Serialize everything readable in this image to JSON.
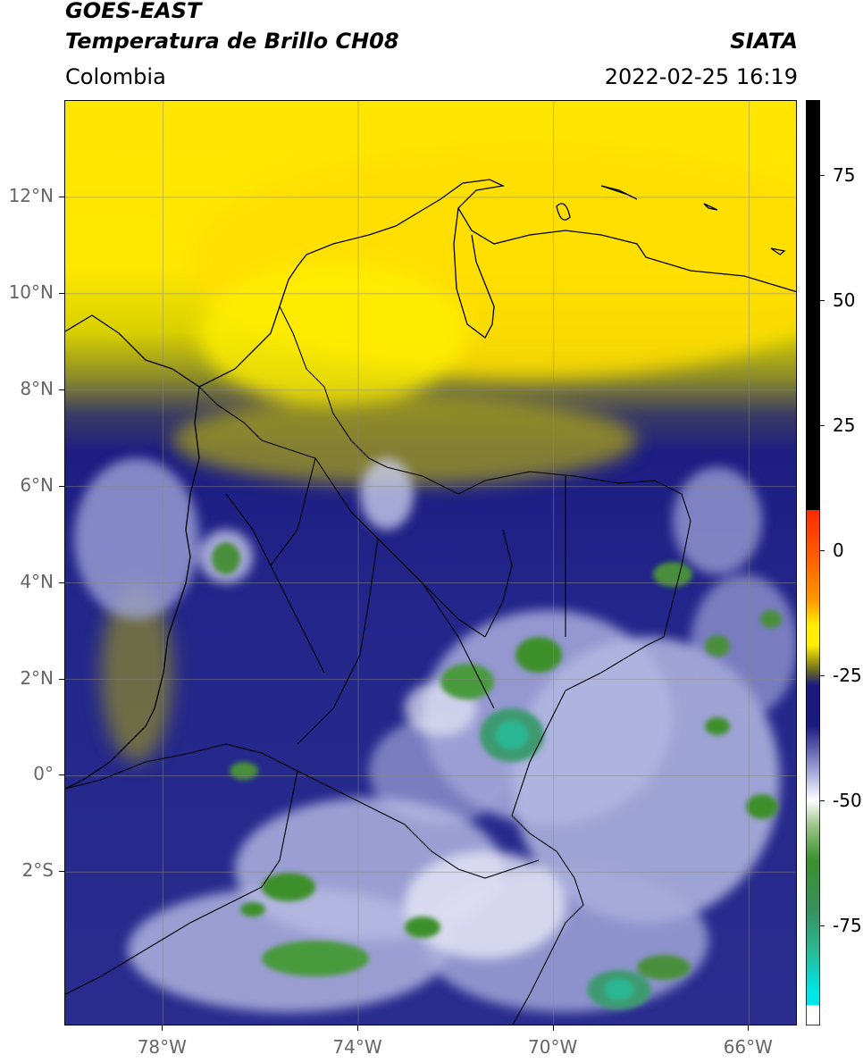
{
  "header": {
    "line1": "GOES-EAST",
    "line2": "Temperatura de Brillo CH08",
    "org": "SIATA",
    "region": "Colombia",
    "timestamp": "2022-02-25 16:19"
  },
  "map": {
    "lat_range": [
      -5.2,
      14.0
    ],
    "lon_range": [
      -80.0,
      -65.0
    ],
    "lat_ticks": [
      "12°N",
      "10°N",
      "8°N",
      "6°N",
      "4°N",
      "2°N",
      "0°",
      "2°S"
    ],
    "lon_ticks": [
      "78°W",
      "74°W",
      "70°W",
      "66°W"
    ],
    "gridlines": true
  },
  "colorbar": {
    "ticks": [
      "75",
      "50",
      "25",
      "0",
      "-25",
      "-50",
      "-75"
    ],
    "range": [
      -95,
      90
    ],
    "colors": {
      "black": "#000000",
      "red": "#ff2a00",
      "orange": "#ff9900",
      "yellow": "#ffee00",
      "olive": "#6b6b22",
      "navy": "#1a1a80",
      "lavender": "#9fa3d6",
      "white": "#ffffff",
      "green": "#3c8f2c",
      "teal": "#2bb894",
      "cyan": "#00e5e5"
    }
  }
}
